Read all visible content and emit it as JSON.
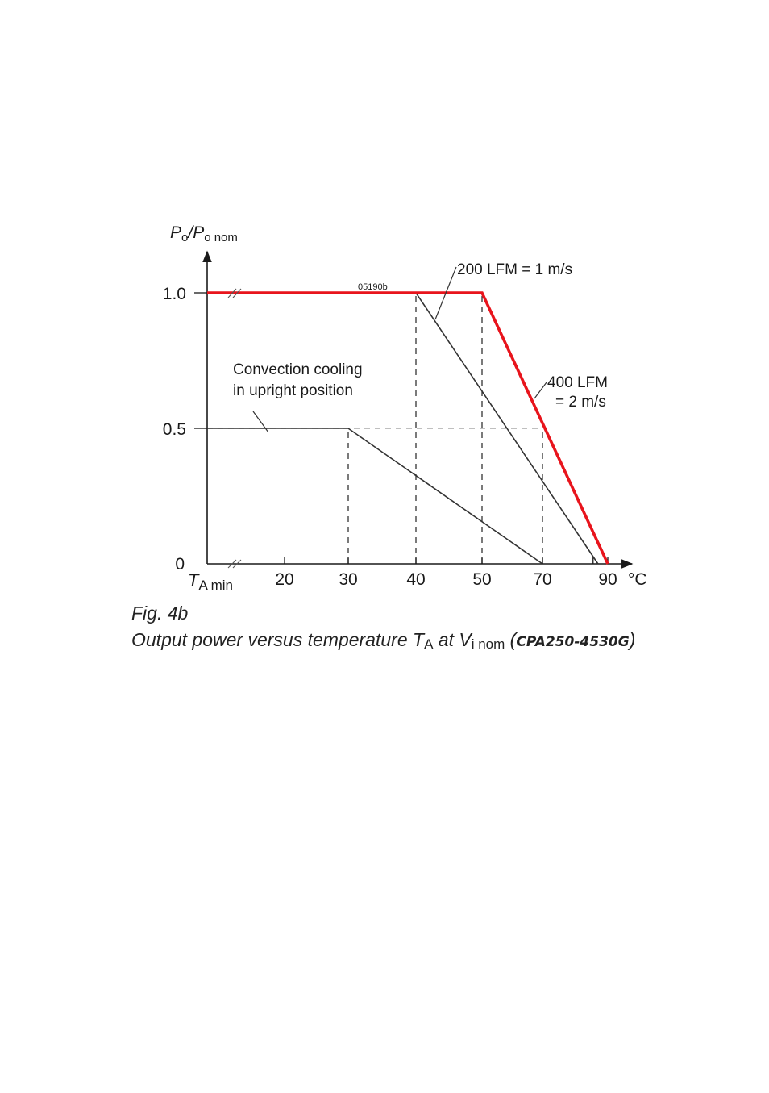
{
  "chart_data": {
    "type": "line",
    "title": "",
    "y_axis_label": {
      "main": "P",
      "sub1": "o",
      "slash": "/P",
      "sub2": "o nom"
    },
    "x_axis_label": {
      "main": "T",
      "sub": "A min"
    },
    "x_unit": "°C",
    "figure_id": "05190b",
    "xlim": [
      10,
      92
    ],
    "ylim": [
      0,
      1.0
    ],
    "x_ticks": [
      20,
      30,
      40,
      50,
      70,
      90
    ],
    "y_ticks": [
      0,
      0.5,
      1.0
    ],
    "x_tick_labels": [
      "20",
      "30",
      "40",
      "50",
      "70",
      "90"
    ],
    "y_tick_labels": [
      "0",
      "0.5",
      "1.0"
    ],
    "series": [
      {
        "name": "Convection cooling in upright position",
        "color": "#333333",
        "x": [
          10,
          30,
          70
        ],
        "y": [
          0.5,
          0.5,
          0
        ]
      },
      {
        "name": "200 LFM = 1 m/s",
        "color": "#333333",
        "x": [
          10,
          40,
          87
        ],
        "y": [
          1.0,
          1.0,
          0
        ]
      },
      {
        "name": "400 LFM = 2 m/s",
        "color": "#e8141c",
        "x": [
          10,
          50,
          90
        ],
        "y": [
          1.0,
          1.0,
          0
        ]
      }
    ],
    "reference_lines": [
      {
        "x": 30,
        "y_range": [
          0,
          0.5
        ]
      },
      {
        "x": 40,
        "y_range": [
          0,
          1.0
        ]
      },
      {
        "x": 50,
        "y_range": [
          0,
          1.0
        ]
      },
      {
        "x": 70,
        "y_range": [
          0,
          0.5
        ]
      },
      {
        "y": 0.5,
        "x_range": [
          10,
          70
        ]
      }
    ],
    "annotations": {
      "convection_line1": "Convection cooling",
      "convection_line2": "in upright position",
      "lfm200": "200 LFM = 1 m/s",
      "lfm400_line1": "400 LFM",
      "lfm400_line2": "= 2 m/s"
    }
  },
  "caption": {
    "fig": "Fig. 4b",
    "text_before": "Output power versus temperature T",
    "ta_sub": "A",
    "text_mid": " at V",
    "vi_sub": "i nom",
    "paren_open": " (",
    "model": "CPA250-4530G",
    "paren_close": ")"
  }
}
